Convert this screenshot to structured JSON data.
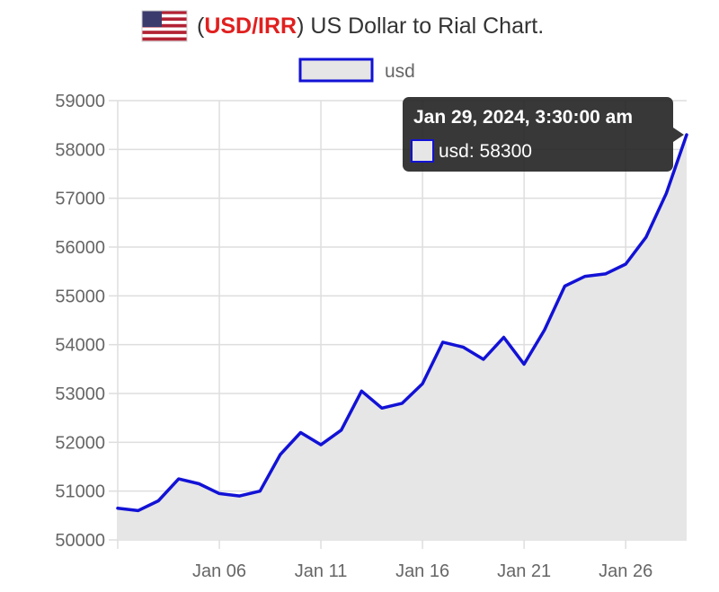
{
  "title": {
    "open_paren": "(",
    "pair": "USD/IRR",
    "rest": ") US Dollar to Rial Chart.",
    "flag_icon": "us-flag-icon"
  },
  "colors": {
    "line": "#1212d6",
    "fill": "#e6e6e6",
    "grid": "#dedede",
    "accent": "#e0201f",
    "tooltip_bg": "#222222"
  },
  "legend": {
    "label": "usd"
  },
  "tooltip": {
    "title": "Jan 29, 2024, 3:30:00 am",
    "body": "usd: 58300"
  },
  "chart_data": {
    "type": "area",
    "series": [
      {
        "name": "usd",
        "x": [
          "2024-01-01",
          "2024-01-02",
          "2024-01-03",
          "2024-01-04",
          "2024-01-05",
          "2024-01-06",
          "2024-01-07",
          "2024-01-08",
          "2024-01-09",
          "2024-01-10",
          "2024-01-11",
          "2024-01-12",
          "2024-01-13",
          "2024-01-14",
          "2024-01-15",
          "2024-01-16",
          "2024-01-17",
          "2024-01-18",
          "2024-01-19",
          "2024-01-20",
          "2024-01-21",
          "2024-01-22",
          "2024-01-23",
          "2024-01-24",
          "2024-01-25",
          "2024-01-26",
          "2024-01-27",
          "2024-01-28",
          "2024-01-29"
        ],
        "values": [
          50650,
          50600,
          50800,
          51250,
          51150,
          50950,
          50900,
          51000,
          51750,
          52200,
          51950,
          52250,
          53050,
          52700,
          52800,
          53200,
          54050,
          53950,
          53700,
          54150,
          53600,
          54300,
          55200,
          55400,
          55450,
          55650,
          56200,
          57100,
          58300
        ]
      }
    ],
    "x_ticks": [
      "Jan 06",
      "Jan 11",
      "Jan 16",
      "Jan 21",
      "Jan 26"
    ],
    "x_tick_dates": [
      "2024-01-06",
      "2024-01-11",
      "2024-01-16",
      "2024-01-21",
      "2024-01-26"
    ],
    "y_ticks": [
      50000,
      51000,
      52000,
      53000,
      54000,
      55000,
      56000,
      57000,
      58000,
      59000
    ],
    "ylim": [
      50000,
      59000
    ],
    "xlim": [
      "2024-01-01",
      "2024-01-29"
    ],
    "grid": true,
    "legend_position": "top-center"
  }
}
